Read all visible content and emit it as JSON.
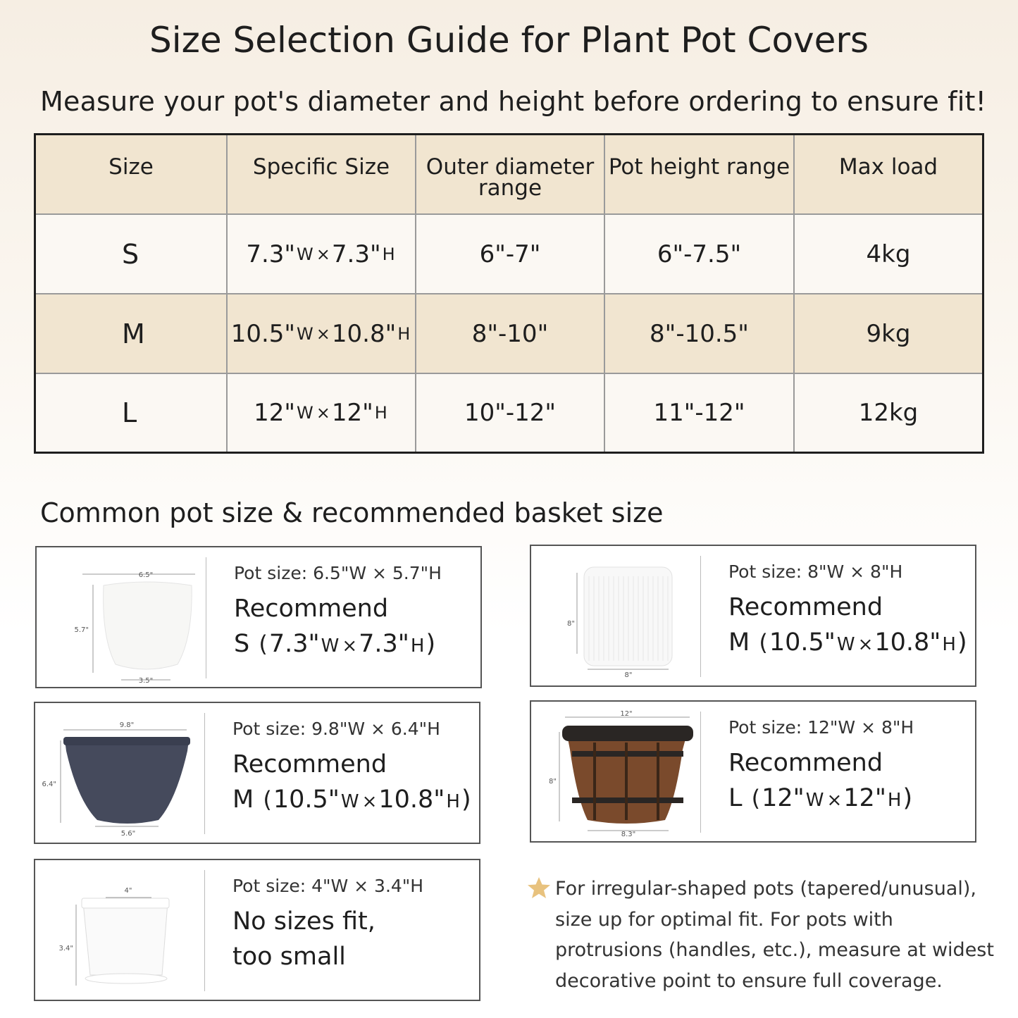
{
  "title": "Size Selection Guide for Plant Pot Covers",
  "subtitle": "Measure your pot's diameter and height before ordering to ensure fit!",
  "table": {
    "headers": [
      "Size",
      "Specific Size",
      "Outer diameter range",
      "Pot height range",
      "Max load"
    ],
    "rows": [
      {
        "size": "S",
        "w": "7.3\"",
        "wu": "W",
        "x": "×",
        "h": "7.3\"",
        "hu": "H",
        "diameter": "6\"-7\"",
        "height": "6\"-7.5\"",
        "load": "4kg"
      },
      {
        "size": "M",
        "w": "10.5\"",
        "wu": "W",
        "x": "×",
        "h": "10.8\"",
        "hu": "H",
        "diameter": "8\"-10\"",
        "height": "8\"-10.5\"",
        "load": "9kg"
      },
      {
        "size": "L",
        "w": "12\"",
        "wu": "W",
        "x": "×",
        "h": "12\"",
        "hu": "H",
        "diameter": "10\"-12\"",
        "height": "11\"-12\"",
        "load": "12kg"
      }
    ],
    "header_color": "#f1e5d0"
  },
  "section_title": "Common pot size & recommended basket size",
  "cards": [
    {
      "pot": "white-round",
      "dims": {
        "top": "6.5\"",
        "side": "5.7\"",
        "bottom": "3.5\""
      },
      "pot_size": "Pot size: 6.5\"W × 5.7\"H",
      "rec1": "Recommend",
      "rec_size": "S",
      "w": "7.3\"",
      "h": "7.3\""
    },
    {
      "pot": "white-ribbed",
      "dims": {
        "top": "",
        "side": "8\"",
        "bottom": "8\""
      },
      "pot_size": "Pot size: 8\"W × 8\"H",
      "rec1": "Recommend",
      "rec_size": "M",
      "w": "10.5\"",
      "h": "10.8\""
    },
    {
      "pot": "navy-bowl",
      "dims": {
        "top": "9.8\"",
        "side": "6.4\"",
        "bottom": "5.6\""
      },
      "pot_size": "Pot size: 9.8\"W × 6.4\"H",
      "rec1": "Recommend",
      "rec_size": "M",
      "w": "10.5\"",
      "h": "10.8\""
    },
    {
      "pot": "barrel",
      "dims": {
        "top": "12\"",
        "side": "8\"",
        "bottom": "8.3\""
      },
      "pot_size": "Pot size: 12\"W × 8\"H",
      "rec1": "Recommend",
      "rec_size": "L",
      "w": "12\"",
      "h": "12\""
    },
    {
      "pot": "white-small",
      "dims": {
        "top": "4\"",
        "side": "3.4\"",
        "bottom": ""
      },
      "pot_size": "Pot size: 4\"W × 3.4\"H",
      "rec1": "No sizes fit,",
      "rec2": "too small"
    }
  ],
  "units": {
    "w": "W",
    "h": "H",
    "x": "×"
  },
  "note": {
    "icon": "star-icon",
    "color": "#e8c27e",
    "text": "For irregular-shaped pots (tapered/unusual), size up for optimal fit.  For pots with protrusions (handles, etc.), measure at widest decorative point to ensure full coverage."
  }
}
